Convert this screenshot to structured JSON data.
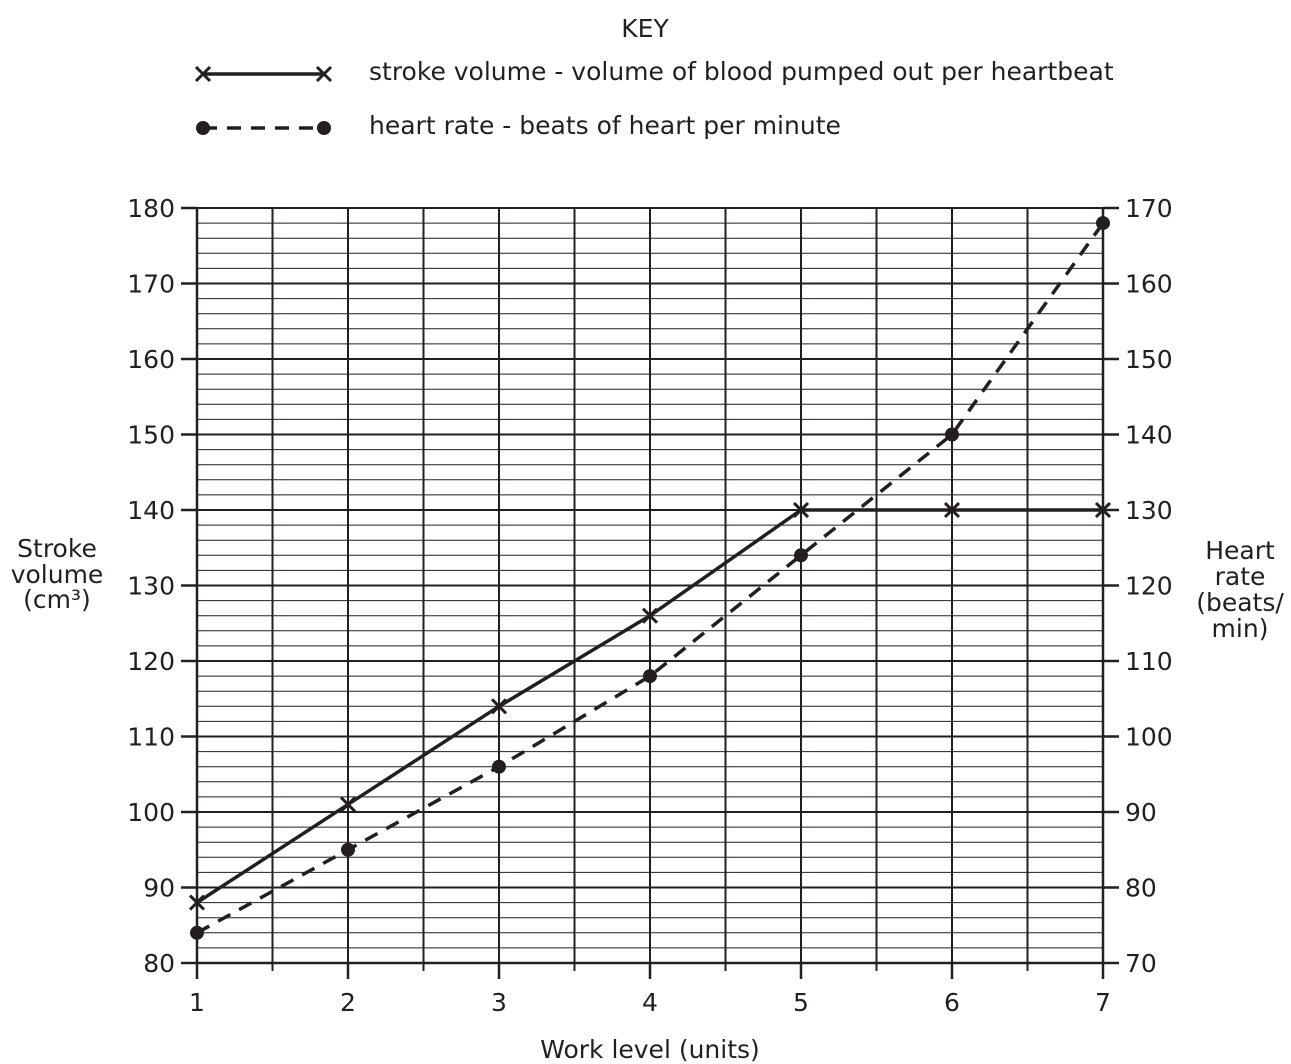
{
  "key": {
    "title": "KEY",
    "entries": [
      {
        "label": "stroke volume - volume of blood pumped out per heartbeat",
        "marker": "cross",
        "line": "solid"
      },
      {
        "label": "heart rate - beats of heart per minute",
        "marker": "dot",
        "line": "dashed"
      }
    ]
  },
  "chart_data": {
    "type": "line",
    "xlabel": "Work level (units)",
    "ylabel_left": [
      "Stroke",
      "volume",
      "(cm³)"
    ],
    "ylabel_right": [
      "Heart",
      "rate",
      "(beats/",
      "min)"
    ],
    "x_ticks": [
      1,
      2,
      3,
      4,
      5,
      6,
      7
    ],
    "xlim": [
      1,
      7
    ],
    "ylim_left": [
      80,
      180
    ],
    "ylim_right": [
      70,
      170
    ],
    "y_ticks_left": [
      80,
      90,
      100,
      110,
      120,
      130,
      140,
      150,
      160,
      170,
      180
    ],
    "y_ticks_right": [
      70,
      80,
      90,
      100,
      110,
      120,
      130,
      140,
      150,
      160,
      170
    ],
    "grid": true,
    "legend_position": "top",
    "x": [
      1,
      2,
      3,
      4,
      5,
      6,
      7
    ],
    "series": [
      {
        "name": "stroke volume",
        "axis": "left",
        "marker": "cross",
        "line": "solid",
        "values": [
          88,
          101,
          114,
          126,
          140,
          140,
          140
        ]
      },
      {
        "name": "heart rate",
        "axis": "right",
        "marker": "dot",
        "line": "dashed",
        "values": [
          74,
          85,
          96,
          108,
          124,
          140,
          168
        ]
      }
    ]
  }
}
